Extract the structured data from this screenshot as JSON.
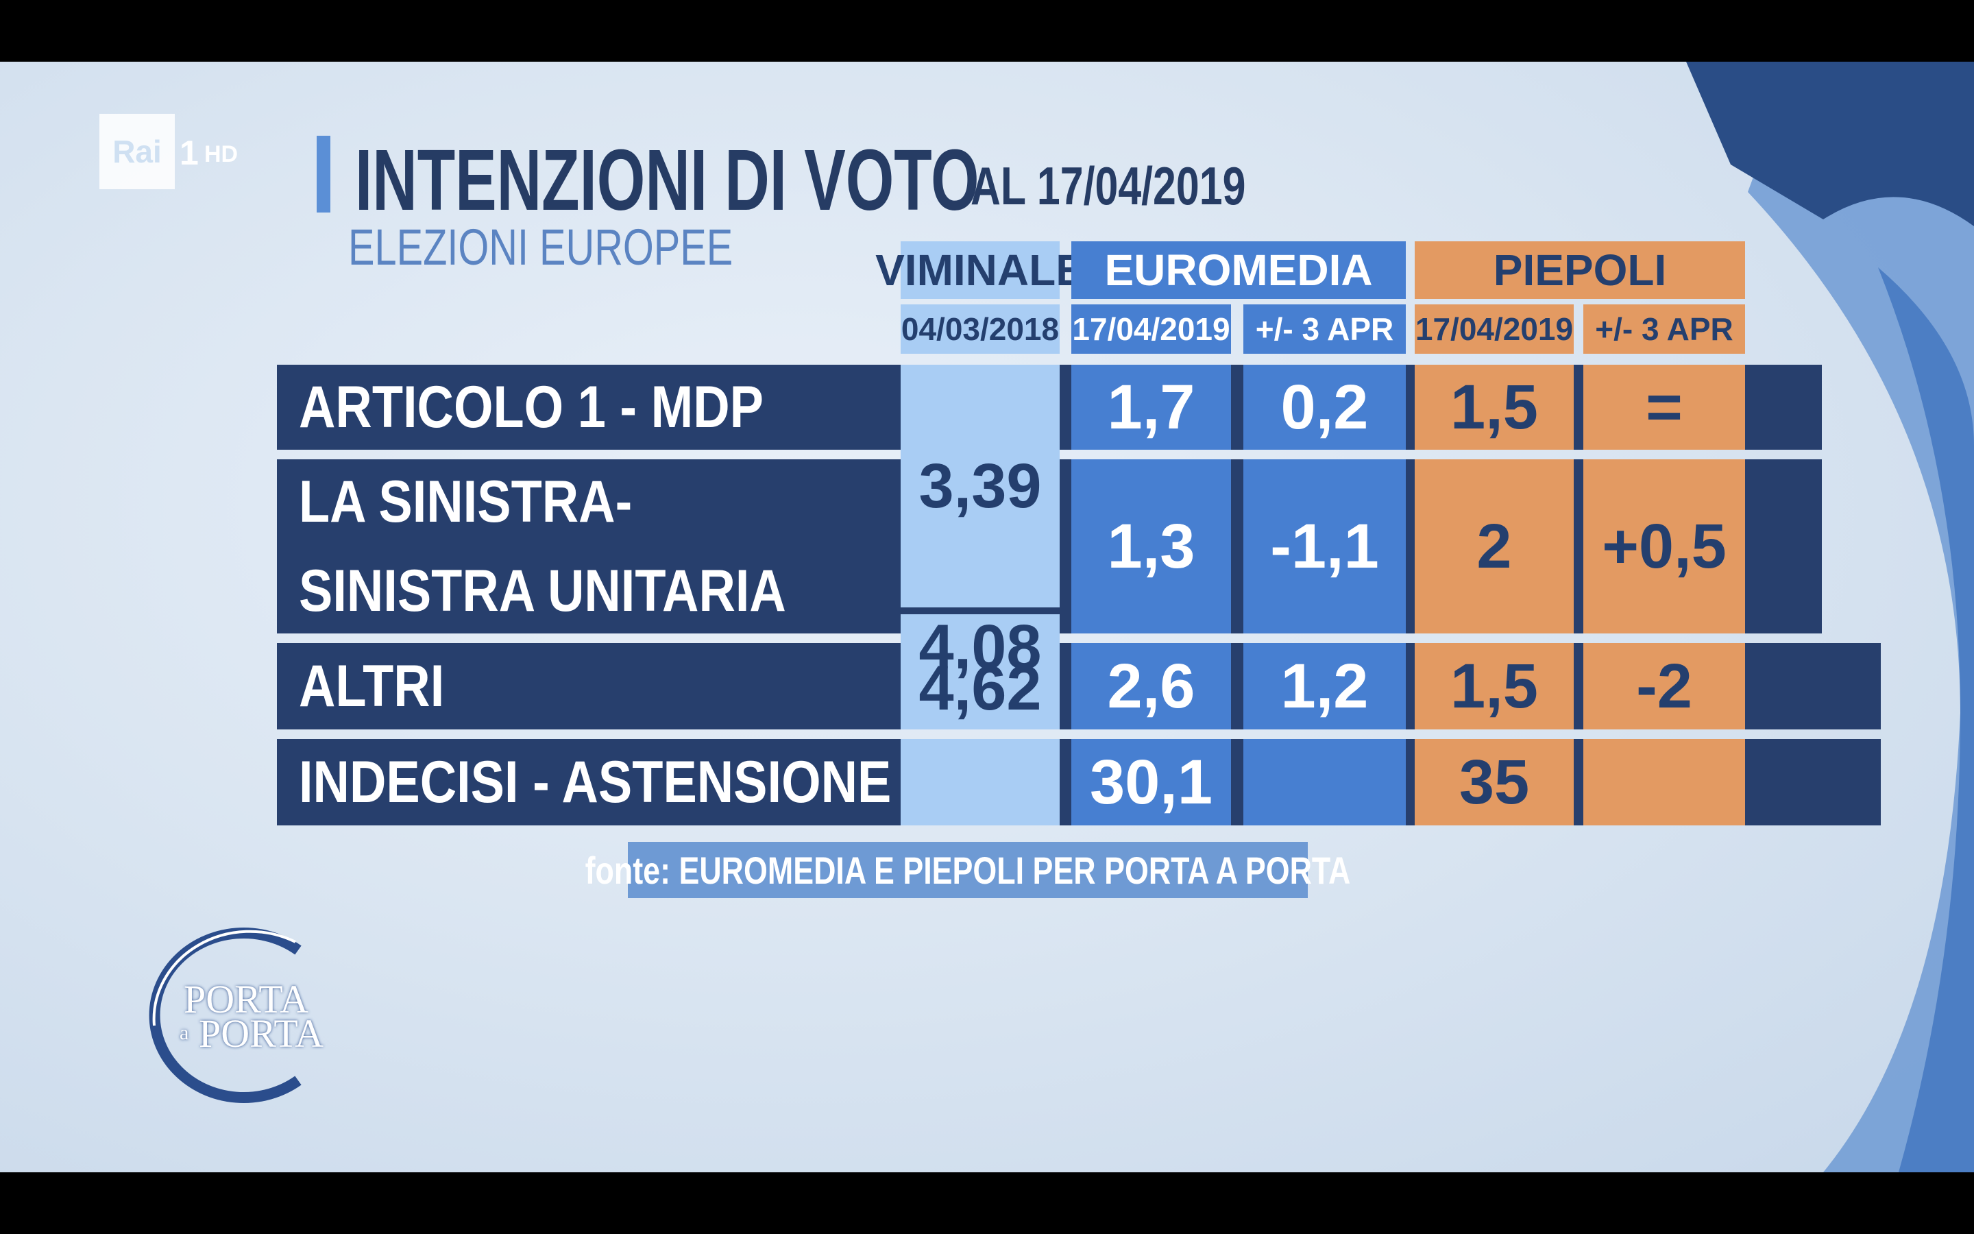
{
  "branding": {
    "channel_logo": "Rai",
    "channel_number": "1",
    "channel_hd": "HD",
    "show_logo_line1": "PORTA",
    "show_logo_small": "a",
    "show_logo_line2": "PORTA"
  },
  "title": {
    "main": "INTENZIONI DI VOTO",
    "date": "AL 17/04/2019",
    "subtitle": "ELEZIONI EUROPEE"
  },
  "colors": {
    "navy": "#273f6d",
    "viminale": "#a9cdf4",
    "euromedia": "#477fd1",
    "piepoli": "#e39a62"
  },
  "chart_data": {
    "type": "table",
    "groups": [
      {
        "name": "VIMINALE",
        "columns": [
          "04/03/2018"
        ]
      },
      {
        "name": "EUROMEDIA",
        "columns": [
          "17/04/2019",
          "+/- 3 APR"
        ]
      },
      {
        "name": "PIEPOLI",
        "columns": [
          "17/04/2019",
          "+/- 3 APR"
        ]
      }
    ],
    "rows": [
      {
        "label": "ARTICOLO 1 - MDP",
        "viminale": "3,39",
        "euromedia": "1,7",
        "euromedia_diff": "0,2",
        "piepoli": "1,5",
        "piepoli_diff": "="
      },
      {
        "label_line1": "LA SINISTRA-",
        "label_line2": "SINISTRA UNITARIA",
        "viminale": "4,08",
        "euromedia": "1,3",
        "euromedia_diff": "-1,1",
        "piepoli": "2",
        "piepoli_diff": "+0,5"
      },
      {
        "label": "ALTRI",
        "viminale": "4,62",
        "euromedia": "2,6",
        "euromedia_diff": "1,2",
        "piepoli": "1,5",
        "piepoli_diff": "-2"
      },
      {
        "label": "INDECISI - ASTENSIONE",
        "viminale": "",
        "euromedia": "30,1",
        "euromedia_diff": "",
        "piepoli": "35",
        "piepoli_diff": ""
      }
    ],
    "source": "fonte: EUROMEDIA E PIEPOLI PER PORTA A PORTA"
  }
}
